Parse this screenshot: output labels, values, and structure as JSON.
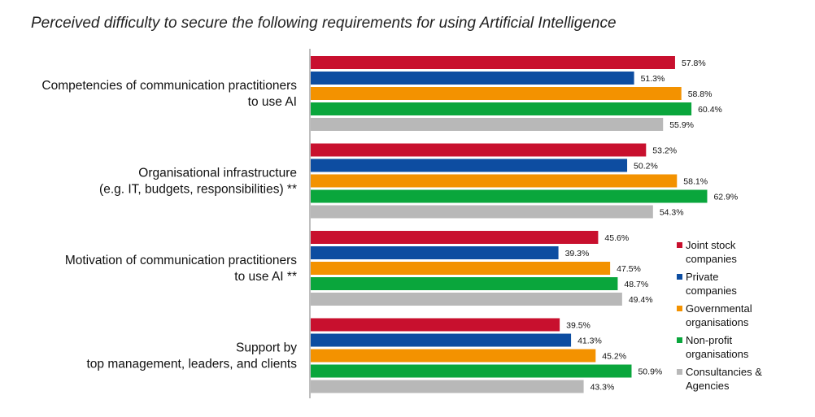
{
  "chart_data": {
    "type": "bar",
    "orientation": "horizontal",
    "title": "Perceived difficulty to secure the following requirements for using Artificial Intelligence",
    "categories": [
      [
        "Competencies of communication practitioners",
        "to use AI"
      ],
      [
        "Organisational infrastructure",
        "(e.g. IT, budgets, responsibilities) **"
      ],
      [
        "Motivation of communication practitioners",
        "to use AI **"
      ],
      [
        "Support by",
        "top management, leaders, and clients"
      ]
    ],
    "series": [
      {
        "name": [
          "Joint stock",
          "companies"
        ],
        "color": "#c8102e",
        "values": [
          57.8,
          53.2,
          45.6,
          39.5
        ],
        "labels": [
          "57.8%",
          "53.2%",
          "45.6%",
          "39.5%"
        ]
      },
      {
        "name": [
          "Private",
          "companies"
        ],
        "color": "#0d4da1",
        "values": [
          51.3,
          50.2,
          39.3,
          41.3
        ],
        "labels": [
          "51.3%",
          "50.2%",
          "39.3%",
          "41.3%"
        ]
      },
      {
        "name": [
          "Governmental",
          "organisations"
        ],
        "color": "#f39200",
        "values": [
          58.8,
          58.1,
          47.5,
          45.2
        ],
        "labels": [
          "58.8%",
          "58.1%",
          "47.5%",
          "45.2%"
        ]
      },
      {
        "name": [
          "Non-profit",
          "organisations"
        ],
        "color": "#0aa63c",
        "values": [
          60.4,
          62.9,
          48.7,
          50.9
        ],
        "labels": [
          "60.4%",
          "62.9%",
          "48.7%",
          "50.9%"
        ]
      },
      {
        "name": [
          "Consultancies &",
          "Agencies"
        ],
        "color": "#b8b8b8",
        "values": [
          55.9,
          54.3,
          49.4,
          43.3
        ],
        "labels": [
          "55.9%",
          "54.3%",
          "49.4%",
          "43.3%"
        ]
      }
    ],
    "xlim": [
      0,
      100
    ],
    "grid": false,
    "legend_position": "right"
  }
}
